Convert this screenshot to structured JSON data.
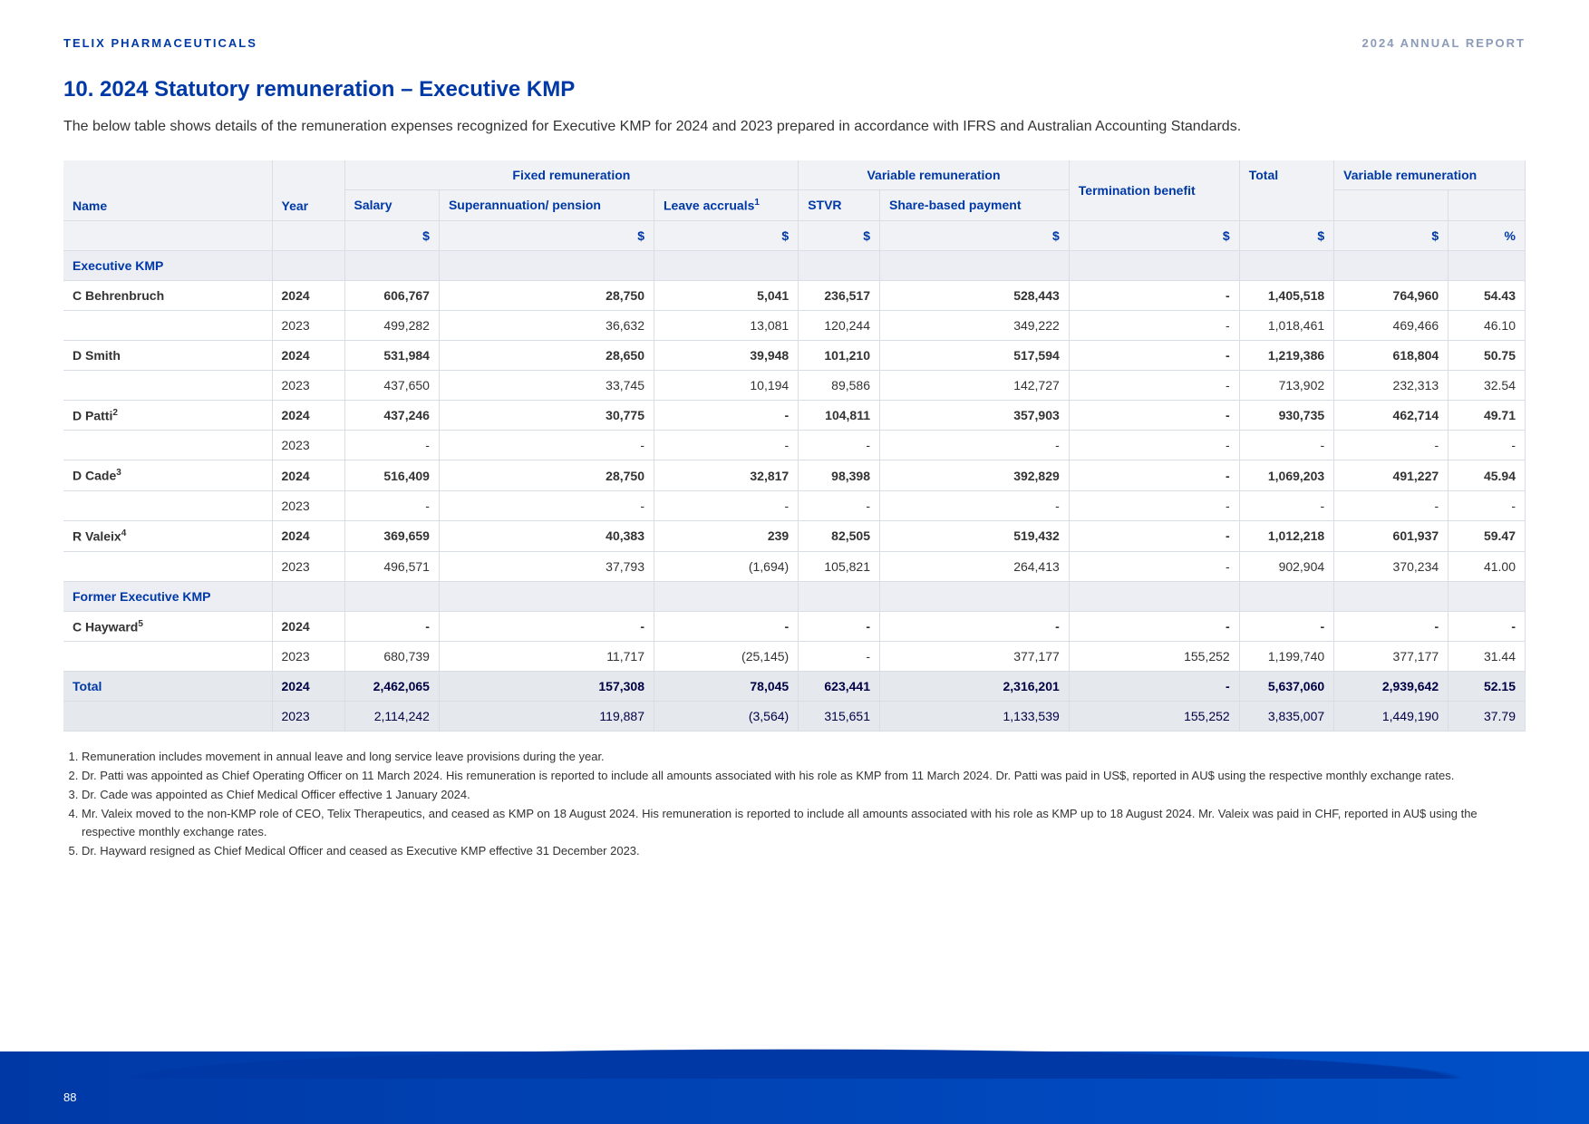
{
  "header_left": "TELIX PHARMACEUTICALS",
  "header_right": "2024 ANNUAL REPORT",
  "section_title": "10. 2024 Statutory remuneration – Executive KMP",
  "intro": "The below table shows details of the remuneration expenses recognized for Executive KMP for 2024 and 2023 prepared in accordance with IFRS and Australian Accounting Standards.",
  "col_headers": {
    "fixed": "Fixed remuneration",
    "variable": "Variable remuneration",
    "termination": "Termination benefit",
    "total": "Total",
    "variable2": "Variable remuneration",
    "name": "Name",
    "year": "Year",
    "salary": "Salary",
    "super": "Superannuation/ pension",
    "leave": "Leave accruals",
    "leave_sup": "1",
    "stvr": "STVR",
    "share": "Share-based payment",
    "dollar": "$",
    "pct": "%"
  },
  "sections": {
    "exec": "Executive KMP",
    "former": "Former Executive KMP",
    "total": "Total"
  },
  "rows": [
    {
      "name": "C Behrenbruch",
      "sup": "",
      "y": "2024",
      "v": [
        "606,767",
        "28,750",
        "5,041",
        "236,517",
        "528,443",
        "-",
        "1,405,518",
        "764,960",
        "54.43"
      ],
      "b": true
    },
    {
      "name": "",
      "sup": "",
      "y": "2023",
      "v": [
        "499,282",
        "36,632",
        "13,081",
        "120,244",
        "349,222",
        "-",
        "1,018,461",
        "469,466",
        "46.10"
      ],
      "b": false
    },
    {
      "name": "D Smith",
      "sup": "",
      "y": "2024",
      "v": [
        "531,984",
        "28,650",
        "39,948",
        "101,210",
        "517,594",
        "-",
        "1,219,386",
        "618,804",
        "50.75"
      ],
      "b": true
    },
    {
      "name": "",
      "sup": "",
      "y": "2023",
      "v": [
        "437,650",
        "33,745",
        "10,194",
        "89,586",
        "142,727",
        "-",
        "713,902",
        "232,313",
        "32.54"
      ],
      "b": false
    },
    {
      "name": "D Patti",
      "sup": "2",
      "y": "2024",
      "v": [
        "437,246",
        "30,775",
        "-",
        "104,811",
        "357,903",
        "-",
        "930,735",
        "462,714",
        "49.71"
      ],
      "b": true
    },
    {
      "name": "",
      "sup": "",
      "y": "2023",
      "v": [
        "-",
        "-",
        "-",
        "-",
        "-",
        "-",
        "-",
        "-",
        "-"
      ],
      "b": false
    },
    {
      "name": "D Cade",
      "sup": "3",
      "y": "2024",
      "v": [
        "516,409",
        "28,750",
        "32,817",
        "98,398",
        "392,829",
        "-",
        "1,069,203",
        "491,227",
        "45.94"
      ],
      "b": true
    },
    {
      "name": "",
      "sup": "",
      "y": "2023",
      "v": [
        "-",
        "-",
        "-",
        "-",
        "-",
        "-",
        "-",
        "-",
        "-"
      ],
      "b": false
    },
    {
      "name": "R Valeix",
      "sup": "4",
      "y": "2024",
      "v": [
        "369,659",
        "40,383",
        "239",
        "82,505",
        "519,432",
        "-",
        "1,012,218",
        "601,937",
        "59.47"
      ],
      "b": true
    },
    {
      "name": "",
      "sup": "",
      "y": "2023",
      "v": [
        "496,571",
        "37,793",
        "(1,694)",
        "105,821",
        "264,413",
        "-",
        "902,904",
        "370,234",
        "41.00"
      ],
      "b": false
    }
  ],
  "former_rows": [
    {
      "name": "C Hayward",
      "sup": "5",
      "y": "2024",
      "v": [
        "-",
        "-",
        "-",
        "-",
        "-",
        "-",
        "-",
        "-",
        "-"
      ],
      "b": true
    },
    {
      "name": "",
      "sup": "",
      "y": "2023",
      "v": [
        "680,739",
        "11,717",
        "(25,145)",
        "-",
        "377,177",
        "155,252",
        "1,199,740",
        "377,177",
        "31.44"
      ],
      "b": false
    }
  ],
  "total_rows": [
    {
      "y": "2024",
      "v": [
        "2,462,065",
        "157,308",
        "78,045",
        "623,441",
        "2,316,201",
        "-",
        "5,637,060",
        "2,939,642",
        "52.15"
      ],
      "b": true
    },
    {
      "y": "2023",
      "v": [
        "2,114,242",
        "119,887",
        "(3,564)",
        "315,651",
        "1,133,539",
        "155,252",
        "3,835,007",
        "1,449,190",
        "37.79"
      ],
      "b": false
    }
  ],
  "footnotes": [
    "Remuneration includes movement in annual leave and long service leave provisions during the year.",
    "Dr. Patti was appointed as Chief Operating Officer on 11 March 2024. His remuneration is reported to include all amounts associated with his role as KMP from 11 March 2024. Dr. Patti was paid in US$, reported in AU$ using the respective monthly exchange rates.",
    "Dr. Cade was appointed as Chief Medical Officer effective 1 January 2024.",
    "Mr. Valeix moved to the non-KMP role of CEO, Telix Therapeutics, and ceased as KMP on 18 August 2024. His remuneration is reported to include all amounts associated with his role as KMP up to 18 August 2024. Mr. Valeix was paid in CHF, reported in AU$ using the respective monthly exchange rates.",
    "Dr. Hayward resigned as Chief Medical Officer and ceased as Executive KMP effective 31 December 2023."
  ],
  "page_number": "88"
}
